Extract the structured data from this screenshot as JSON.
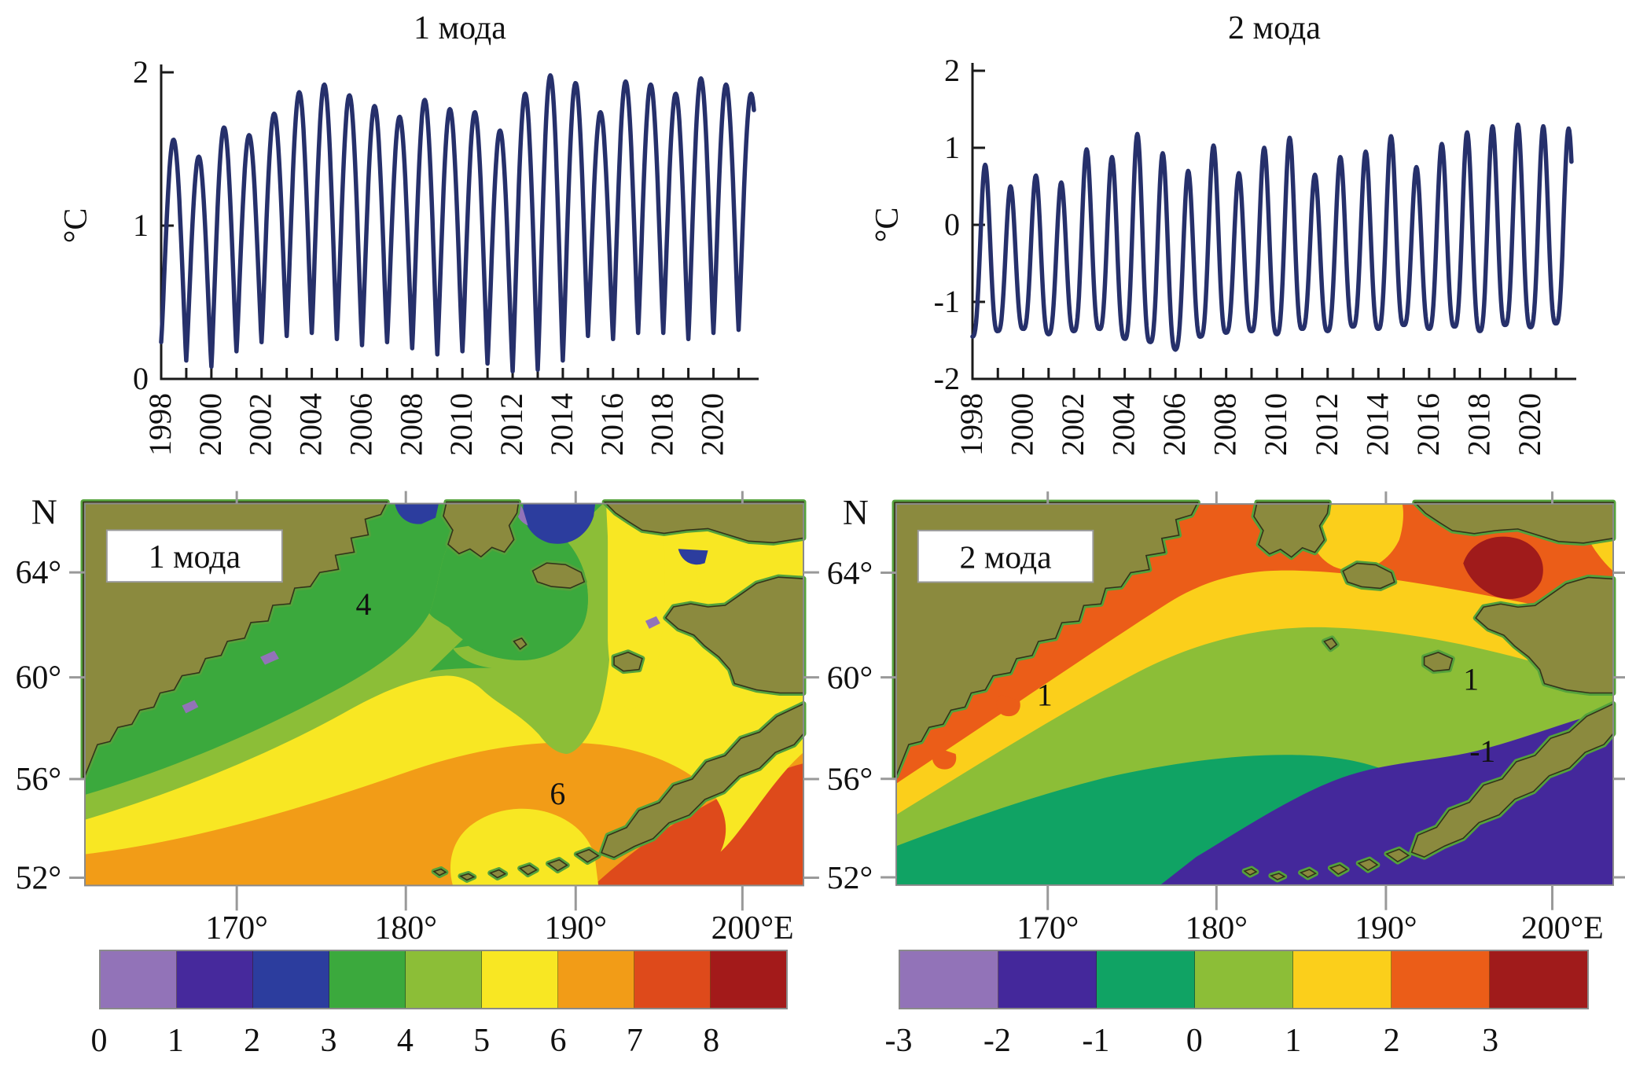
{
  "figure": {
    "description": "Two EOF modes of Bering Sea temperature: seasonal time series (1998-2021) and spatial contour maps",
    "background": "#FFFFFF"
  },
  "charts_common": {
    "x_tick_years": [
      1998,
      1999,
      2000,
      2001,
      2002,
      2003,
      2004,
      2005,
      2006,
      2007,
      2008,
      2009,
      2010,
      2011,
      2012,
      2013,
      2014,
      2015,
      2016,
      2017,
      2018,
      2019,
      2020,
      2021
    ],
    "x_label_years": [
      "1998",
      "2000",
      "2002",
      "2004",
      "2006",
      "2008",
      "2010",
      "2012",
      "2014",
      "2016",
      "2018",
      "2020"
    ],
    "line_color": "#26306B",
    "axis_color": "#1a1a1a"
  },
  "chart_data": [
    {
      "type": "line",
      "title": "1 мода",
      "ylabel": "°C",
      "ylim": [
        0,
        2
      ],
      "yticks": [
        "0",
        "1",
        "2"
      ],
      "ytick_values": [
        0,
        1,
        2
      ],
      "xlim": [
        1998,
        2021.8
      ],
      "x_end_data": 2021.62,
      "grid": false,
      "years": [
        1998,
        1999,
        2000,
        2001,
        2002,
        2003,
        2004,
        2005,
        2006,
        2007,
        2008,
        2009,
        2010,
        2011,
        2012,
        2013,
        2014,
        2015,
        2016,
        2017,
        2018,
        2019,
        2020,
        2021
      ],
      "annual_peaks": [
        1.56,
        1.45,
        1.64,
        1.59,
        1.73,
        1.87,
        1.92,
        1.85,
        1.78,
        1.71,
        1.82,
        1.76,
        1.74,
        1.62,
        1.86,
        1.98,
        1.93,
        1.74,
        1.94,
        1.92,
        1.86,
        1.96,
        1.92,
        1.86
      ],
      "annual_troughs": [
        0.24,
        0.12,
        0.08,
        0.18,
        0.24,
        0.28,
        0.3,
        0.26,
        0.22,
        0.24,
        0.2,
        0.16,
        0.18,
        0.1,
        0.05,
        0.06,
        0.12,
        0.28,
        0.26,
        0.3,
        0.3,
        0.26,
        0.3,
        0.32
      ]
    },
    {
      "type": "line",
      "title": "2 мода",
      "ylabel": "°C",
      "ylim": [
        -2,
        2
      ],
      "yticks": [
        "-2",
        "-1",
        "0",
        "1",
        "2"
      ],
      "ytick_values": [
        -2,
        -1,
        0,
        1,
        2
      ],
      "xlim": [
        1998,
        2021.8
      ],
      "x_end_data": 2021.62,
      "grid": false,
      "years": [
        1998,
        1999,
        2000,
        2001,
        2002,
        2003,
        2004,
        2005,
        2006,
        2007,
        2008,
        2009,
        2010,
        2011,
        2012,
        2013,
        2014,
        2015,
        2016,
        2017,
        2018,
        2019,
        2020,
        2021
      ],
      "annual_peaks": [
        0.78,
        0.5,
        0.64,
        0.55,
        0.98,
        0.88,
        1.18,
        0.93,
        0.7,
        1.03,
        0.67,
        1.0,
        1.13,
        0.65,
        0.88,
        0.95,
        1.15,
        0.75,
        1.05,
        1.2,
        1.28,
        1.3,
        1.28,
        1.25
      ],
      "annual_troughs": [
        -1.45,
        -1.38,
        -1.35,
        -1.42,
        -1.38,
        -1.35,
        -1.48,
        -1.52,
        -1.62,
        -1.45,
        -1.4,
        -1.38,
        -1.42,
        -1.35,
        -1.38,
        -1.32,
        -1.35,
        -1.3,
        -1.35,
        -1.32,
        -1.38,
        -1.3,
        -1.33,
        -1.28
      ]
    },
    {
      "type": "heatmap",
      "title": "1 мода",
      "region": "Bering Sea spatial pattern, mode 1",
      "levels": [
        0,
        1,
        2,
        3,
        4,
        5,
        6,
        7,
        8
      ],
      "colors": [
        "#9273B8",
        "#46299C",
        "#2C3D9E",
        "#3BA93D",
        "#8CBE37",
        "#F8E723",
        "#F29C17",
        "#DE4A1B",
        "#A31A1A"
      ],
      "contour_labels": [
        "4",
        "6"
      ],
      "lat_labels": [
        "64°",
        "60°",
        "56°",
        "52°"
      ],
      "lon_labels": [
        "170°",
        "180°",
        "190°",
        "200°"
      ],
      "lat_prefix": "N",
      "lon_suffix": "E",
      "legend_position": "bottom"
    },
    {
      "type": "heatmap",
      "title": "2 мода",
      "region": "Bering Sea spatial pattern, mode 2",
      "levels": [
        -3,
        -2,
        -1,
        0,
        1,
        2,
        3
      ],
      "colors": [
        "#9273B8",
        "#44289B",
        "#10A364",
        "#8CBE37",
        "#FBCF1B",
        "#EB5D18",
        "#A01B1B"
      ],
      "contour_labels": [
        "1",
        "1",
        "-1"
      ],
      "lat_labels": [
        "64°",
        "60°",
        "56°",
        "52°"
      ],
      "lon_labels": [
        "170°",
        "180°",
        "190°",
        "200°"
      ],
      "lat_prefix": "N",
      "lon_suffix": "E",
      "legend_position": "bottom"
    }
  ],
  "maps": {
    "lat_prefix": "N",
    "lat_labels": [
      "64°",
      "60°",
      "56°",
      "52°"
    ],
    "lon_labels": [
      "170°",
      "180°",
      "190°",
      "200°"
    ],
    "lon_suffix": "E",
    "land_color": "#8B8A3E",
    "coast_color": "#33331A",
    "fringe_color": "#55A23C",
    "tick_color": "#999999",
    "left": {
      "box_label": "1 мода",
      "palette": [
        "#9273B8",
        "#46299C",
        "#2C3D9E",
        "#3BA93D",
        "#8CBE37",
        "#F8E723",
        "#F29C17",
        "#DE4A1B",
        "#A31A1A"
      ],
      "colorbar_ticks": [
        "0",
        "1",
        "2",
        "3",
        "4",
        "5",
        "6",
        "7",
        "8"
      ],
      "contour_labels": [
        "4",
        "6"
      ]
    },
    "right": {
      "box_label": "2 мода",
      "palette": [
        "#9273B8",
        "#44289B",
        "#10A364",
        "#8CBE37",
        "#FBCF1B",
        "#EB5D18",
        "#A01B1B"
      ],
      "colorbar_ticks": [
        "-3",
        "-2",
        "-1",
        "0",
        "1",
        "2",
        "3"
      ],
      "contour_labels": [
        "1",
        "1",
        "-1"
      ]
    }
  }
}
